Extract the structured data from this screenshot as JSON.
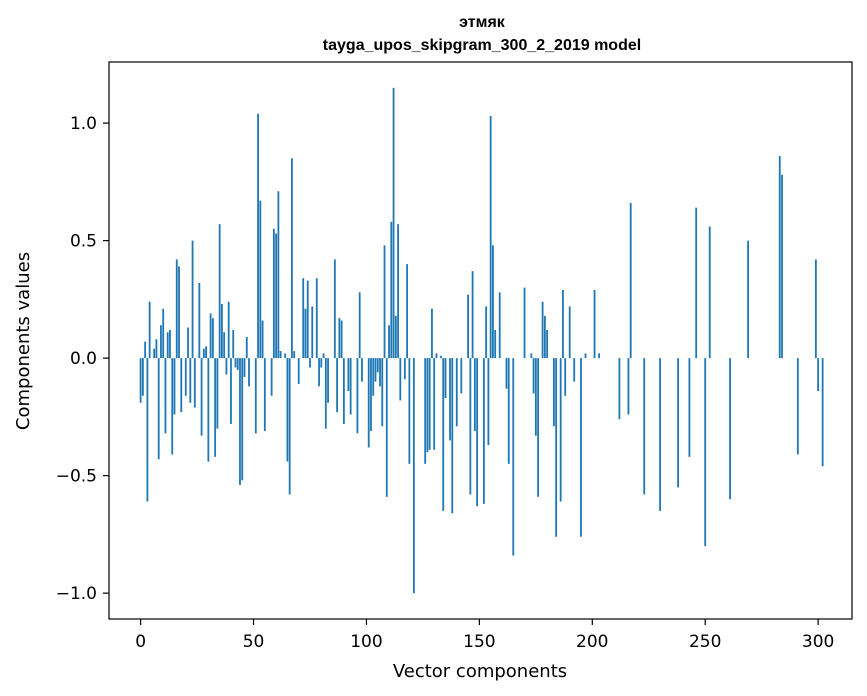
{
  "chart_data": {
    "type": "bar",
    "title_line1": "этмяк",
    "title_line2": "tayga_upos_skipgram_300_2_2019 model",
    "xlabel": "Vector components",
    "ylabel": "Components values",
    "xlim": [
      -14,
      315
    ],
    "ylim": [
      -1.11,
      1.26
    ],
    "xticks": [
      0,
      50,
      100,
      150,
      200,
      250,
      300
    ],
    "xtick_labels": [
      "0",
      "50",
      "100",
      "150",
      "200",
      "250",
      "300"
    ],
    "yticks": [
      -1.0,
      -0.5,
      0.0,
      0.5,
      1.0
    ],
    "ytick_labels": [
      "−1.0",
      "−0.5",
      "0.0",
      "0.5",
      "1.0"
    ],
    "bar_color": "#1f77b4",
    "values": [
      -0.19,
      -0.16,
      0.07,
      -0.61,
      0.24,
      0.0,
      0.04,
      0.08,
      -0.43,
      0.14,
      0.21,
      -0.32,
      0.11,
      0.12,
      -0.41,
      -0.24,
      0.42,
      0.39,
      -0.23,
      0.0,
      -0.16,
      0.13,
      -0.19,
      0.5,
      -0.21,
      0.0,
      0.32,
      -0.33,
      0.04,
      0.05,
      -0.44,
      0.19,
      0.17,
      -0.42,
      -0.3,
      0.57,
      0.23,
      0.11,
      -0.07,
      0.24,
      -0.28,
      0.12,
      -0.04,
      -0.05,
      -0.54,
      -0.52,
      -0.08,
      0.09,
      -0.12,
      0.0,
      0.0,
      -0.32,
      1.04,
      0.67,
      0.16,
      -0.31,
      0.0,
      0.0,
      -0.16,
      0.55,
      0.53,
      0.71,
      0.03,
      0.0,
      0.02,
      -0.44,
      -0.58,
      0.85,
      0.03,
      0.0,
      -0.11,
      0.0,
      0.34,
      0.21,
      0.33,
      -0.04,
      0.22,
      0.0,
      0.34,
      -0.12,
      -0.04,
      0.02,
      -0.3,
      -0.19,
      0.0,
      0.0,
      0.42,
      -0.23,
      0.17,
      0.16,
      -0.28,
      0.0,
      -0.14,
      -0.24,
      0.0,
      0.0,
      -0.32,
      0.28,
      -0.1,
      0.0,
      0.0,
      -0.38,
      -0.31,
      -0.16,
      -0.1,
      -0.06,
      -0.12,
      -0.29,
      0.48,
      -0.59,
      0.14,
      0.58,
      1.15,
      0.18,
      0.57,
      -0.18,
      0.0,
      -0.09,
      0.4,
      -0.45,
      0.0,
      -1.0,
      0.0,
      0.0,
      0.0,
      0.0,
      -0.45,
      -0.4,
      -0.39,
      0.21,
      -0.39,
      0.02,
      0.0,
      0.01,
      -0.65,
      -0.17,
      0.0,
      -0.35,
      -0.66,
      0.0,
      -0.29,
      0.0,
      -0.15,
      0.0,
      0.0,
      0.27,
      -0.58,
      0.37,
      -0.31,
      -0.63,
      0.0,
      0.0,
      -0.62,
      0.22,
      -0.37,
      1.03,
      0.48,
      0.12,
      0.0,
      0.28,
      0.0,
      0.0,
      -0.13,
      -0.45,
      0.0,
      -0.84,
      0.0,
      0.0,
      0.0,
      0.0,
      0.3,
      0.0,
      0.0,
      0.02,
      -0.15,
      -0.33,
      -0.59,
      0.0,
      0.24,
      0.18,
      0.12,
      0.0,
      0.0,
      -0.29,
      -0.76,
      0.0,
      -0.61,
      0.29,
      -0.16,
      0.0,
      0.22,
      0.0,
      -0.1,
      0.0,
      0.0,
      -0.76,
      0.0,
      0.02,
      0.0,
      0.0,
      0.0,
      0.29,
      0.0,
      0.02,
      0.0,
      0.0,
      0.0,
      0.0,
      0.0,
      0.0,
      0.0,
      0.0,
      -0.26,
      0.0,
      0.0,
      0.0,
      -0.24,
      0.66,
      0.0,
      0.0,
      0.0,
      0.0,
      0.0,
      -0.58,
      0.0,
      0.0,
      0.0,
      0.0,
      0.0,
      0.0,
      -0.65,
      0.0,
      0.0,
      0.0,
      0.0,
      0.0,
      0.0,
      0.0,
      -0.55,
      0.0,
      0.0,
      0.0,
      0.0,
      -0.42,
      0.0,
      0.0,
      0.64,
      0.0,
      0.0,
      0.0,
      -0.8,
      0.0,
      0.56,
      0.0,
      0.0,
      0.0,
      0.0,
      0.0,
      0.0,
      0.0,
      0.0,
      -0.6,
      0.0,
      0.0,
      0.0,
      0.0,
      0.0,
      0.0,
      0.0,
      0.5,
      0.0,
      0.0,
      0.0,
      0.0,
      0.0,
      0.0,
      0.0,
      0.0,
      0.0,
      0.0,
      0.0,
      0.0,
      0.0,
      0.86,
      0.78,
      0.0,
      0.0,
      0.0,
      0.0,
      0.0,
      0.0,
      -0.41,
      0.0,
      0.0,
      0.0,
      0.0,
      0.0,
      0.0,
      0.0,
      0.42,
      -0.14,
      0.0,
      -0.46,
      0.0
    ]
  }
}
